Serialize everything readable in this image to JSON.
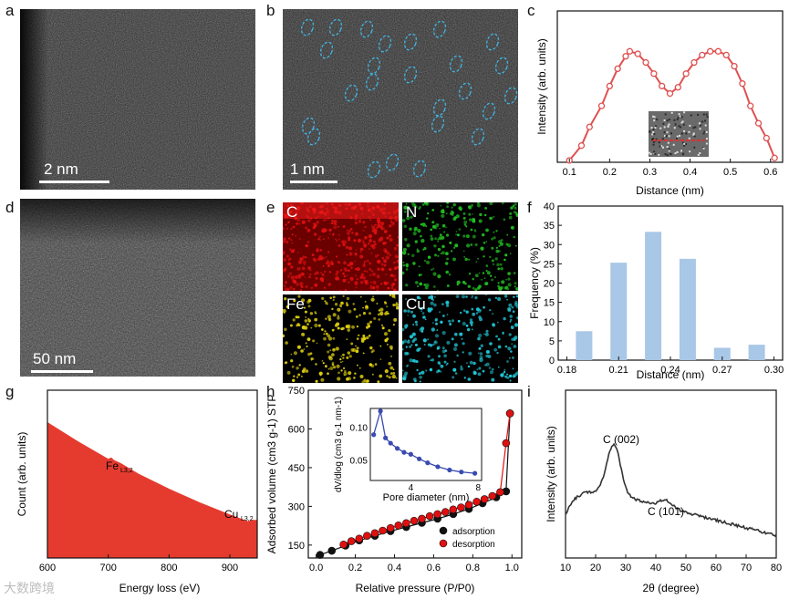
{
  "panel_labels": [
    "a",
    "b",
    "c",
    "d",
    "e",
    "f",
    "g",
    "h",
    "i"
  ],
  "panel_a": {
    "scale": "2 nm"
  },
  "panel_b": {
    "scale": "1 nm"
  },
  "panel_d": {
    "scale": "50 nm"
  },
  "panel_e": {
    "maps": [
      {
        "label": "C",
        "color": "#e01010"
      },
      {
        "label": "N",
        "color": "#22c022"
      },
      {
        "label": "Fe",
        "color": "#e0d010"
      },
      {
        "label": "Cu",
        "color": "#20c8d8"
      }
    ]
  },
  "watermark": "大数跨境",
  "chart_data": [
    {
      "panel": "c",
      "type": "line",
      "xlabel": "Distance (nm)",
      "ylabel": "Intensity (arb. units)",
      "xlim": [
        0.07,
        0.63
      ],
      "x": [
        0.1,
        0.13,
        0.15,
        0.18,
        0.2,
        0.22,
        0.24,
        0.25,
        0.27,
        0.29,
        0.31,
        0.33,
        0.35,
        0.37,
        0.39,
        0.41,
        0.43,
        0.45,
        0.47,
        0.49,
        0.51,
        0.53,
        0.55,
        0.57,
        0.59,
        0.61
      ],
      "y": [
        0.0,
        0.12,
        0.27,
        0.44,
        0.6,
        0.74,
        0.84,
        0.88,
        0.86,
        0.79,
        0.7,
        0.6,
        0.54,
        0.59,
        0.7,
        0.79,
        0.85,
        0.88,
        0.88,
        0.85,
        0.76,
        0.62,
        0.44,
        0.3,
        0.18,
        0.02
      ],
      "ticks": [
        "0.1",
        "0.2",
        "0.3",
        "0.4",
        "0.5",
        "0.6"
      ]
    },
    {
      "panel": "f",
      "type": "bar",
      "xlabel": "Distance (nm)",
      "ylabel": "Frequency (%)",
      "categories": [
        0.19,
        0.21,
        0.23,
        0.25,
        0.27,
        0.29
      ],
      "values": [
        7.5,
        25.3,
        33.3,
        26.3,
        3.2,
        4.0
      ],
      "xlim": [
        0.175,
        0.305
      ],
      "ylim": [
        0,
        40
      ],
      "xticks": [
        "0.18",
        "0.21",
        "0.24",
        "0.27",
        "0.30"
      ],
      "yticks": [
        "0",
        "5",
        "10",
        "15",
        "20",
        "25",
        "30",
        "35",
        "40"
      ]
    },
    {
      "panel": "g",
      "type": "area",
      "xlabel": "Energy loss (eV)",
      "ylabel": "Count (arb. units)",
      "x": [
        600,
        650,
        700,
        705,
        710,
        720,
        750,
        800,
        850,
        900,
        930,
        935,
        945
      ],
      "y": [
        1.0,
        0.86,
        0.73,
        0.74,
        0.72,
        0.7,
        0.62,
        0.51,
        0.41,
        0.32,
        0.27,
        0.28,
        0.28
      ],
      "xticks": [
        "600",
        "700",
        "800",
        "900"
      ],
      "annotations": [
        {
          "text": "Fe",
          "sub": "L3,2"
        },
        {
          "text": "Cu",
          "sub": "L3,2"
        }
      ]
    },
    {
      "panel": "h",
      "type": "scatter",
      "xlabel": "Relative pressure (P/P0)",
      "ylabel": "Adsorbed volume (cm3 g-1) STP",
      "xlim": [
        -0.04,
        1.05
      ],
      "ylim": [
        100,
        750
      ],
      "xticks": [
        "0.0",
        "0.2",
        "0.4",
        "0.6",
        "0.8",
        "1.0"
      ],
      "yticks": [
        "150",
        "300",
        "450",
        "600",
        "750"
      ],
      "series": [
        {
          "name": "adsorption",
          "color": "#111111",
          "x": [
            0.02,
            0.08,
            0.15,
            0.22,
            0.3,
            0.38,
            0.46,
            0.54,
            0.62,
            0.7,
            0.78,
            0.85,
            0.92,
            0.97,
            0.99
          ],
          "y": [
            112,
            128,
            148,
            168,
            186,
            204,
            220,
            236,
            252,
            270,
            290,
            312,
            335,
            358,
            660
          ]
        },
        {
          "name": "desorption",
          "color": "#e01010",
          "x": [
            0.99,
            0.97,
            0.94,
            0.9,
            0.86,
            0.82,
            0.78,
            0.74,
            0.7,
            0.66,
            0.62,
            0.58,
            0.54,
            0.5,
            0.46,
            0.42,
            0.38,
            0.34,
            0.3,
            0.26,
            0.22,
            0.18,
            0.14
          ],
          "y": [
            660,
            545,
            355,
            340,
            328,
            318,
            306,
            296,
            288,
            278,
            270,
            262,
            252,
            244,
            235,
            226,
            216,
            206,
            196,
            186,
            175,
            165,
            152
          ]
        }
      ],
      "inset": {
        "xlabel": "Pore diameter (nm)",
        "ylabel": "dV/dlog (cm3 g-1 nm-1)",
        "xlim": [
          1.6,
          8.2
        ],
        "ylim": [
          0.02,
          0.13
        ],
        "xticks": [
          "4",
          "8"
        ],
        "yticks": [
          "0.05",
          "0.10"
        ],
        "x": [
          1.8,
          2.2,
          2.5,
          2.8,
          3.2,
          3.6,
          4.0,
          4.5,
          5.0,
          5.6,
          6.3,
          7.0,
          7.8
        ],
        "y": [
          0.09,
          0.126,
          0.085,
          0.077,
          0.069,
          0.063,
          0.06,
          0.053,
          0.047,
          0.041,
          0.036,
          0.033,
          0.031
        ]
      }
    },
    {
      "panel": "i",
      "type": "line",
      "xlabel": "2θ (degree)",
      "ylabel": "Intensity (arb. units)",
      "xlim": [
        10,
        80
      ],
      "xticks": [
        "10",
        "20",
        "30",
        "40",
        "50",
        "60",
        "70",
        "80"
      ],
      "annotations": [
        "C (002)",
        "C (101)"
      ]
    }
  ]
}
